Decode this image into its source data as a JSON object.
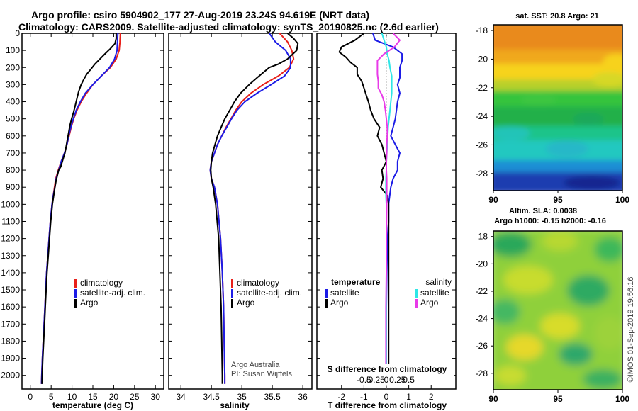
{
  "header": {
    "title_line1": "Argo profile: csiro 5904902_177 27-Aug-2019 23.24S 94.619E (NRT data)",
    "title_line2": "Climatology: CARS2009. Satellite-adjusted climatology: synTS_20190825.nc (2.6d earlier)"
  },
  "colors": {
    "climatology": "#e8201a",
    "satellite": "#1c1ce6",
    "argo": "#000000",
    "salinity_satellite": "#2ee6e6",
    "salinity_argo": "#e83ae8"
  },
  "credits": {
    "line1": "Argo Australia",
    "line2": "PI: Susan Wijffels"
  },
  "watermark": "©IMOS 01-Sep-2019 19:56:16",
  "chart_data": [
    {
      "type": "line",
      "id": "temperature",
      "title": "",
      "xlabel": "temperature (deg C)",
      "ylabel": "",
      "xlim": [
        -2,
        32
      ],
      "ylim": [
        2080,
        0
      ],
      "xticks": [
        "0",
        "5",
        "10",
        "15",
        "20",
        "25",
        "30"
      ],
      "xtick_values": [
        0,
        5,
        10,
        15,
        20,
        25,
        30
      ],
      "yticks": [
        "0",
        "100",
        "200",
        "300",
        "400",
        "500",
        "600",
        "700",
        "800",
        "900",
        "1000",
        "1100",
        "1200",
        "1300",
        "1400",
        "1500",
        "1600",
        "1700",
        "1800",
        "1900",
        "2000"
      ],
      "ytick_values": [
        0,
        100,
        200,
        300,
        400,
        500,
        600,
        700,
        800,
        900,
        1000,
        1100,
        1200,
        1300,
        1400,
        1500,
        1600,
        1700,
        1800,
        1900,
        2000
      ],
      "legend": [
        "climatology",
        "satellite-adj. clim.",
        "Argo"
      ],
      "series": [
        {
          "name": "climatology",
          "color": "#e8201a",
          "depth": [
            0,
            50,
            100,
            150,
            200,
            250,
            300,
            350,
            400,
            450,
            500,
            550,
            600,
            650,
            700,
            750,
            800,
            850,
            900,
            950,
            1000,
            1100,
            1200,
            1300,
            1400,
            1500,
            1600,
            1700,
            1800,
            1900,
            2000,
            2050
          ],
          "values": [
            21.6,
            21.5,
            21.3,
            20.6,
            19.2,
            17.0,
            15.0,
            13.5,
            12.2,
            11.2,
            10.4,
            9.8,
            9.3,
            8.8,
            8.2,
            7.4,
            6.7,
            6.1,
            5.8,
            5.5,
            5.2,
            4.8,
            4.5,
            4.2,
            3.9,
            3.7,
            3.5,
            3.3,
            3.1,
            2.9,
            2.75,
            2.7
          ]
        },
        {
          "name": "satellite-adj. clim.",
          "color": "#1c1ce6",
          "depth": [
            0,
            50,
            100,
            150,
            200,
            250,
            300,
            350,
            400,
            450,
            500,
            550,
            600,
            650,
            700,
            750,
            800,
            850,
            900,
            950,
            1000,
            1100,
            1200,
            1300,
            1400,
            1500,
            1600,
            1700,
            1800,
            1900,
            2000,
            2050
          ],
          "values": [
            21.0,
            20.9,
            20.8,
            20.2,
            19.0,
            17.0,
            15.0,
            13.2,
            12.0,
            11.0,
            10.3,
            9.7,
            9.2,
            8.8,
            8.2,
            7.4,
            6.8,
            6.2,
            5.9,
            5.5,
            5.2,
            4.8,
            4.5,
            4.2,
            3.9,
            3.7,
            3.5,
            3.3,
            3.1,
            2.9,
            2.75,
            2.7
          ]
        },
        {
          "name": "Argo",
          "color": "#000000",
          "depth": [
            0,
            30,
            60,
            90,
            120,
            150,
            180,
            210,
            240,
            270,
            300,
            340,
            380,
            420,
            460,
            500,
            540,
            580,
            620,
            660,
            700,
            740,
            780,
            800,
            820,
            860,
            900,
            950,
            1000,
            1050,
            1100,
            1200,
            1300,
            1400,
            1500,
            1600,
            1700,
            1800,
            1900,
            2000,
            2050
          ],
          "values": [
            20.6,
            20.6,
            20.3,
            19.2,
            17.9,
            16.7,
            15.5,
            14.5,
            13.5,
            12.8,
            12.2,
            11.6,
            11.2,
            10.8,
            10.4,
            9.9,
            9.5,
            9.2,
            8.9,
            8.6,
            8.3,
            7.8,
            7.3,
            6.8,
            6.6,
            6.2,
            5.9,
            5.6,
            5.3,
            5.1,
            4.9,
            4.6,
            4.3,
            4.0,
            3.8,
            3.6,
            3.4,
            3.2,
            3.0,
            2.85,
            2.8
          ]
        }
      ]
    },
    {
      "type": "line",
      "id": "salinity",
      "title": "",
      "xlabel": "salinity",
      "ylabel": "",
      "xlim": [
        33.8,
        36.15
      ],
      "ylim": [
        2080,
        0
      ],
      "xticks": [
        "34",
        "34.5",
        "35",
        "35.5",
        "36"
      ],
      "xtick_values": [
        34,
        34.5,
        35,
        35.5,
        36
      ],
      "legend": [
        "climatology",
        "satellite-adj. clim.",
        "Argo"
      ],
      "series": [
        {
          "name": "climatology",
          "color": "#e8201a",
          "depth": [
            0,
            50,
            100,
            150,
            200,
            250,
            300,
            350,
            400,
            450,
            500,
            550,
            600,
            650,
            700,
            750,
            800,
            850,
            900,
            1000,
            1200,
            1400,
            1600,
            1800,
            2000,
            2050
          ],
          "values": [
            35.62,
            35.75,
            35.82,
            35.85,
            35.78,
            35.6,
            35.35,
            35.15,
            35.0,
            34.9,
            34.82,
            34.74,
            34.67,
            34.6,
            34.55,
            34.5,
            34.48,
            34.5,
            34.55,
            34.6,
            34.65,
            34.68,
            34.7,
            34.71,
            34.72,
            34.72
          ]
        },
        {
          "name": "satellite-adj. clim.",
          "color": "#1c1ce6",
          "depth": [
            0,
            50,
            100,
            150,
            200,
            250,
            300,
            350,
            400,
            450,
            500,
            550,
            600,
            650,
            700,
            750,
            800,
            850,
            900,
            1000,
            1200,
            1400,
            1600,
            1800,
            2000,
            2050
          ],
          "values": [
            35.45,
            35.55,
            35.72,
            35.8,
            35.8,
            35.7,
            35.48,
            35.25,
            35.05,
            34.92,
            34.83,
            34.75,
            34.67,
            34.6,
            34.55,
            34.5,
            34.48,
            34.5,
            34.55,
            34.6,
            34.65,
            34.68,
            34.7,
            34.71,
            34.72,
            34.72
          ]
        },
        {
          "name": "Argo",
          "color": "#000000",
          "depth": [
            0,
            30,
            60,
            100,
            150,
            180,
            200,
            230,
            260,
            300,
            350,
            400,
            450,
            500,
            550,
            600,
            650,
            700,
            750,
            800,
            850,
            900,
            1000,
            1200,
            1400,
            1600,
            1800,
            2000,
            2050
          ],
          "values": [
            35.75,
            35.85,
            35.92,
            35.9,
            35.75,
            35.6,
            35.45,
            35.35,
            35.25,
            35.12,
            34.98,
            34.88,
            34.8,
            34.72,
            34.66,
            34.6,
            34.56,
            34.52,
            34.5,
            34.49,
            34.5,
            34.53,
            34.57,
            34.62,
            34.64,
            34.66,
            34.67,
            34.68,
            34.68
          ]
        }
      ]
    },
    {
      "type": "line",
      "id": "difference",
      "title": "S difference from climatology",
      "xlabel": "T difference from climatology",
      "ylabel": "",
      "xlim": [
        -3.1,
        3.1
      ],
      "ylim": [
        2080,
        0
      ],
      "xticks": [
        "-2",
        "-1",
        "0",
        "1",
        "2"
      ],
      "xtick_values": [
        -2,
        -1,
        0,
        1,
        2
      ],
      "top_ticks": [
        "-0.5",
        "-0.25",
        "0",
        "0.25",
        "0.5"
      ],
      "top_tick_values": [
        -0.5,
        -0.25,
        0,
        0.25,
        0.5
      ],
      "legend_left_title": "temperature",
      "legend_right_title": "salinity",
      "legend": [
        "satellite",
        "Argo",
        "satellite",
        "Argo"
      ],
      "series": [
        {
          "name": "temperature satellite",
          "color": "#1c1ce6",
          "depth": [
            0,
            40,
            80,
            120,
            160,
            200,
            260,
            300,
            350,
            400,
            450,
            500,
            550,
            600,
            650,
            700,
            750,
            800,
            850,
            900,
            950,
            1000,
            1100,
            1200,
            1400,
            1600,
            1800,
            2000,
            2050
          ],
          "values": [
            -0.6,
            -0.5,
            0.3,
            0.7,
            0.7,
            0.6,
            0.6,
            0.5,
            0.6,
            0.5,
            0.45,
            0.4,
            0.3,
            0.2,
            0.4,
            0.6,
            0.5,
            0.5,
            0.3,
            0.2,
            0.15,
            0.1,
            0.1,
            0.05,
            0.02,
            0.0,
            0.0,
            0.0,
            0.0
          ]
        },
        {
          "name": "temperature Argo",
          "color": "#000000",
          "depth": [
            0,
            40,
            80,
            110,
            140,
            170,
            200,
            240,
            280,
            320,
            360,
            400,
            450,
            500,
            550,
            600,
            650,
            700,
            750,
            800,
            850,
            900,
            950,
            1000,
            1100,
            1200,
            1300,
            1400,
            1500,
            1600,
            1700,
            1800,
            1900,
            2000,
            2050
          ],
          "values": [
            -1.0,
            -1.4,
            -2.0,
            -2.1,
            -1.8,
            -1.6,
            -1.3,
            -1.3,
            -1.1,
            -1.0,
            -0.9,
            -0.8,
            -0.7,
            -0.55,
            -0.3,
            -0.4,
            -0.2,
            -0.1,
            0.0,
            -0.2,
            -0.15,
            -0.25,
            0.05,
            0.1,
            0.1,
            0.1,
            0.1,
            0.1,
            0.1,
            0.1,
            0.1,
            0.1,
            0.1,
            0.1,
            0.1
          ]
        },
        {
          "name": "salinity satellite",
          "color": "#2ee6e6",
          "depth": [
            0,
            40,
            80,
            120,
            160,
            200,
            250,
            300,
            350,
            400,
            450,
            500,
            550,
            600,
            650,
            700,
            750,
            800,
            850,
            900,
            950,
            1000,
            1100,
            1200,
            1400,
            1600,
            1800,
            2000,
            2050
          ],
          "values": [
            -0.1,
            -0.05,
            0.0,
            0.02,
            0.06,
            0.08,
            0.12,
            0.12,
            0.12,
            0.1,
            0.08,
            0.06,
            0.04,
            0.03,
            0.02,
            0.01,
            0.0,
            0.0,
            -0.01,
            -0.01,
            -0.01,
            0.0,
            0.0,
            0.0,
            0.0,
            0.0,
            0.0,
            0.0,
            0.0
          ]
        },
        {
          "name": "salinity Argo",
          "color": "#e83ae8",
          "depth": [
            0,
            40,
            80,
            120,
            160,
            200,
            240,
            280,
            320,
            360,
            400,
            450,
            500,
            550,
            600,
            650,
            700,
            750,
            800,
            850,
            900,
            1000,
            1200,
            1400,
            1600,
            1800,
            2000,
            2050
          ],
          "values": [
            0.15,
            0.3,
            0.18,
            -0.05,
            -0.2,
            -0.2,
            -0.2,
            -0.18,
            -0.18,
            -0.1,
            -0.05,
            -0.02,
            0.0,
            0.02,
            0.02,
            0.01,
            0.01,
            0.0,
            0.0,
            0.01,
            0.01,
            0.01,
            0.0,
            0.0,
            -0.01,
            -0.01,
            -0.01,
            -0.01
          ]
        }
      ]
    },
    {
      "type": "heatmap",
      "id": "sst_map",
      "title": "sat. SST: 20.8 Argo: 21",
      "xlabel": "",
      "ylabel": "",
      "xlim": [
        90,
        100
      ],
      "ylim": [
        -29.2,
        -17.6
      ],
      "xticks": [
        "90",
        "95",
        "100"
      ],
      "yticks": [
        "-18",
        "-20",
        "-22",
        "-24",
        "-26",
        "-28"
      ]
    },
    {
      "type": "heatmap",
      "id": "sla_map",
      "title": "Altim. SLA: 0.0038",
      "subtitle": "Argo h1000: -0.15 h2000: -0.16",
      "xlabel": "",
      "ylabel": "",
      "xlim": [
        90,
        100
      ],
      "ylim": [
        -29.2,
        -17.6
      ],
      "xticks": [
        "90",
        "95",
        "100"
      ],
      "yticks": [
        "-18",
        "-20",
        "-22",
        "-24",
        "-26",
        "-28"
      ]
    }
  ]
}
